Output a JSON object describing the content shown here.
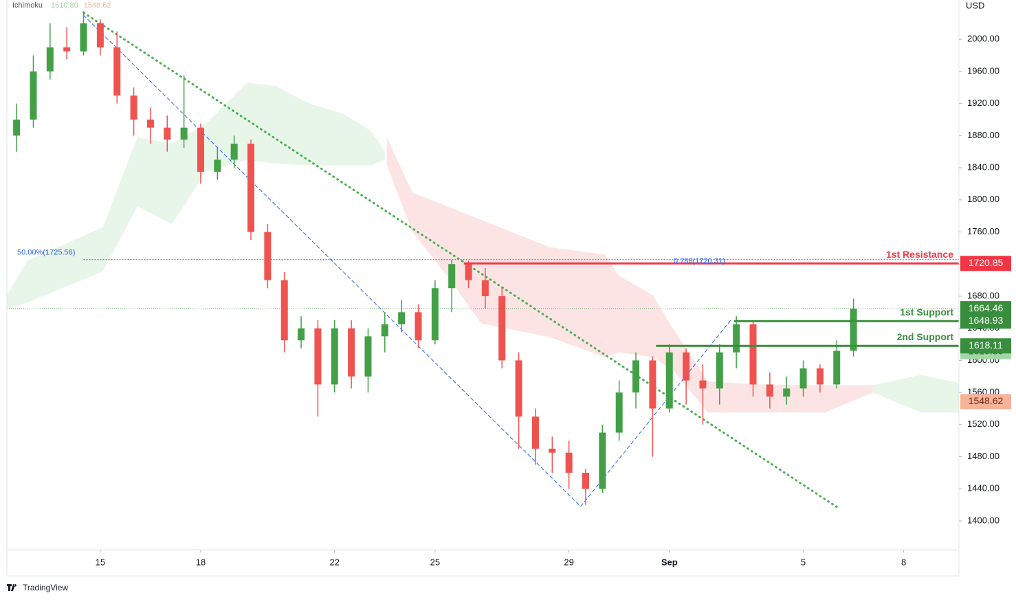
{
  "chart_data": {
    "type": "candlestick",
    "indicator": {
      "name": "Ichimoku",
      "values": [
        {
          "value": 1610.8,
          "label": "1610.80",
          "color": "#a5d6a7",
          "text_color": "#26662b"
        },
        {
          "value": 1548.62,
          "label": "1548.62",
          "color": "#f7b39a",
          "text_color": "#6b2a12"
        }
      ]
    },
    "currency": "USD",
    "brand": "TradingView",
    "x": [
      12.5,
      13,
      13.5,
      14,
      14.5,
      15,
      15.5,
      16,
      16.5,
      17,
      17.5,
      18,
      18.5,
      19,
      19.5,
      20,
      20.5,
      21,
      21.5,
      22,
      22.5,
      23,
      23.5,
      24,
      24.5,
      25,
      25.5,
      26,
      26.5,
      27,
      27.5,
      28,
      28.5,
      29,
      29.5,
      30,
      30.5,
      31,
      31.5,
      32,
      32.5,
      33,
      33.5,
      34,
      34.5,
      35,
      35.5,
      36,
      36.5,
      37,
      37.5
    ],
    "open": [
      1880,
      1900,
      1960,
      1990,
      1985,
      2020,
      1990,
      1930,
      1900,
      1890,
      1875,
      1890,
      1835,
      1850,
      1870,
      1760,
      1700,
      1625,
      1640,
      1570,
      1640,
      1580,
      1630,
      1645,
      1660,
      1625,
      1690,
      1720,
      1700,
      1680,
      1600,
      1530,
      1490,
      1485,
      1460,
      1440,
      1510,
      1560,
      1600,
      1540,
      1610,
      1575,
      1565,
      1610,
      1645,
      1570,
      1555,
      1565,
      1590,
      1570,
      1612
    ],
    "high": [
      1920,
      1980,
      2020,
      2015,
      2035,
      2025,
      2010,
      1940,
      1915,
      1905,
      1955,
      1895,
      1865,
      1880,
      1875,
      1770,
      1710,
      1655,
      1650,
      1650,
      1650,
      1640,
      1660,
      1675,
      1670,
      1700,
      1725,
      1724,
      1715,
      1690,
      1610,
      1540,
      1505,
      1500,
      1465,
      1520,
      1575,
      1610,
      1605,
      1620,
      1615,
      1595,
      1620,
      1655,
      1650,
      1585,
      1580,
      1600,
      1595,
      1625,
      1677
    ],
    "low": [
      1860,
      1890,
      1950,
      1975,
      1980,
      1980,
      1920,
      1880,
      1870,
      1860,
      1865,
      1820,
      1825,
      1840,
      1750,
      1690,
      1610,
      1615,
      1530,
      1560,
      1565,
      1560,
      1610,
      1635,
      1615,
      1620,
      1660,
      1690,
      1665,
      1590,
      1490,
      1470,
      1460,
      1440,
      1420,
      1435,
      1500,
      1540,
      1480,
      1535,
      1545,
      1520,
      1545,
      1590,
      1555,
      1540,
      1545,
      1555,
      1560,
      1565,
      1605
    ],
    "close": [
      1900,
      1960,
      1990,
      1985,
      2020,
      1990,
      1930,
      1900,
      1890,
      1875,
      1890,
      1835,
      1850,
      1870,
      1760,
      1700,
      1625,
      1640,
      1570,
      1640,
      1580,
      1630,
      1645,
      1660,
      1625,
      1690,
      1720,
      1700,
      1680,
      1600,
      1530,
      1490,
      1485,
      1460,
      1440,
      1510,
      1560,
      1600,
      1540,
      1610,
      1575,
      1565,
      1610,
      1645,
      1570,
      1555,
      1565,
      1590,
      1570,
      1612,
      1664.46
    ],
    "up_color": "#43a047",
    "down_color": "#ef5350",
    "clouds": [
      {
        "color": "#e8f5e9",
        "x": [
          12.21,
          12.82,
          15.08,
          16.11,
          17.14,
          18.16,
          19.39,
          20.22,
          21.24,
          22.27,
          23.09,
          23.5
        ],
        "upper": [
          1681,
          1724,
          1766,
          1878,
          1870,
          1895,
          1946,
          1942,
          1920,
          1907,
          1886,
          1860
        ],
        "lower": [
          1664,
          1672,
          1711,
          1792,
          1770,
          1835,
          1850,
          1845,
          1843,
          1843,
          1843,
          1850
        ]
      },
      {
        "color": "#fde4e4",
        "x": [
          23.56,
          24.32,
          25.35,
          26.38,
          28.43,
          30.07,
          30.48,
          31.51,
          32.13,
          33.15,
          34.59,
          36.64,
          38.08
        ],
        "upper": [
          1878,
          1809,
          1792,
          1775,
          1741,
          1732,
          1706,
          1681,
          1638,
          1574,
          1570,
          1569,
          1569
        ],
        "lower": [
          1843,
          1760,
          1706,
          1646,
          1629,
          1604,
          1610,
          1604,
          1587,
          1535,
          1535,
          1535,
          1560
        ]
      },
      {
        "color": "#e8f5e9",
        "x": [
          38.08,
          39.52,
          40.65
        ],
        "upper": [
          1569,
          1582,
          1572
        ],
        "lower": [
          1560,
          1535,
          1535
        ]
      }
    ],
    "trendlines": [
      {
        "x": [
          14.51,
          37.09
        ],
        "values": [
          2033,
          1415
        ],
        "color": "#4caf50",
        "style": "dotted"
      },
      {
        "x": [
          14.5,
          29.35,
          33.85
        ],
        "values": [
          2030,
          1418,
          1651
        ],
        "color": "#2962ff",
        "style": "dashed"
      }
    ],
    "fib_lines": [
      {
        "label": "50.00%(1725.56)",
        "value": 1725.56,
        "start": 14.5
      },
      {
        "label": "0.786(1720.31)",
        "value": 1720.31,
        "start": 25.86
      }
    ],
    "levels": [
      {
        "name": "1st Resistance",
        "value": 1720.85,
        "label": "1720.85",
        "start": 25.86,
        "color": "#f23645"
      },
      {
        "name": "1st Support",
        "value": 1648.93,
        "label": "1648.93",
        "start": 33.93,
        "color": "#388e3c"
      },
      {
        "name": "2nd Support",
        "value": 1618.11,
        "label": "1618.11",
        "start": 31.6,
        "color": "#388e3c"
      }
    ],
    "xlim": [
      12.21,
      40.65
    ],
    "xticks": [
      15,
      18,
      22,
      25,
      29,
      {
        "value": 32,
        "label": "Sep"
      },
      {
        "value": 36,
        "label": "5"
      },
      {
        "value": 39,
        "label": "8"
      }
    ],
    "ylim": [
      1364,
      2049
    ],
    "yticks": [
      {
        "value": 1400,
        "label": "1400.00"
      },
      {
        "value": 1440,
        "label": "1440.00"
      },
      {
        "value": 1480,
        "label": "1480.00"
      },
      {
        "value": 1520,
        "label": "1520.00"
      },
      {
        "value": 1560,
        "label": "1560.00"
      },
      {
        "value": 1600,
        "label": "1600.00"
      },
      {
        "value": 1640,
        "label": "1640.00"
      },
      {
        "value": 1680,
        "label": "1680.00"
      },
      {
        "value": 1720,
        "label": "1720.00"
      },
      {
        "value": 1760,
        "label": "1760.00"
      },
      {
        "value": 1800,
        "label": "1800.00"
      },
      {
        "value": 1840,
        "label": "1840.00"
      },
      {
        "value": 1880,
        "label": "1880.00"
      },
      {
        "value": 1920,
        "label": "1920.00"
      },
      {
        "value": 1960,
        "label": "1960.00"
      },
      {
        "value": 2000,
        "label": "2000.00"
      }
    ]
  }
}
